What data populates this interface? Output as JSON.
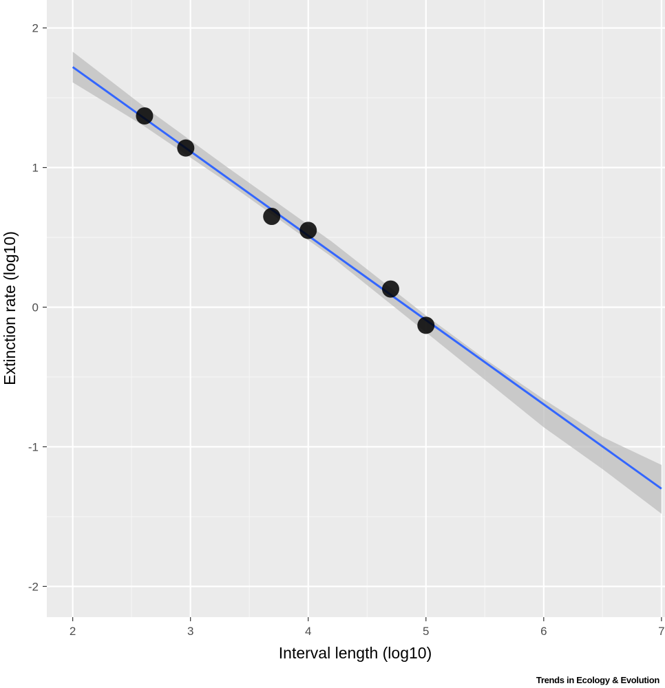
{
  "chart_data": {
    "type": "scatter",
    "xlabel": "Interval length (log10)",
    "ylabel": "Extinction rate (log10)",
    "xlim": [
      1.78,
      7.03
    ],
    "ylim": [
      -2.22,
      2.2
    ],
    "x_ticks": [
      2,
      3,
      4,
      5,
      6,
      7
    ],
    "x_tick_labels": [
      "2",
      "3",
      "4",
      "5",
      "6",
      "7"
    ],
    "y_ticks": [
      -2,
      -1,
      0,
      1,
      2
    ],
    "y_tick_labels": [
      "-2",
      "-1",
      "0",
      "1",
      "2"
    ],
    "points": [
      {
        "x": 2.61,
        "y": 1.37
      },
      {
        "x": 2.96,
        "y": 1.14
      },
      {
        "x": 3.69,
        "y": 0.65
      },
      {
        "x": 4.0,
        "y": 0.55
      },
      {
        "x": 4.7,
        "y": 0.13
      },
      {
        "x": 5.0,
        "y": -0.13
      }
    ],
    "fit_line": {
      "x": [
        2,
        7
      ],
      "y": [
        1.72,
        -1.3
      ]
    },
    "confidence_band": {
      "x": [
        2,
        2.6,
        3.3,
        4.2,
        5,
        5.5,
        6,
        6.5,
        7
      ],
      "lower": [
        1.61,
        1.3,
        0.9,
        0.36,
        -0.18,
        -0.52,
        -0.86,
        -1.16,
        -1.48
      ],
      "upper": [
        1.83,
        1.44,
        1.01,
        0.47,
        -0.06,
        -0.37,
        -0.66,
        -0.93,
        -1.13
      ]
    },
    "grid": true,
    "colors": {
      "panel": "#ebebeb",
      "grid_major": "#ffffff",
      "grid_minor": "#f5f5f5",
      "points": "#000000",
      "line": "#3366ff",
      "band": "#bdbdbd"
    }
  },
  "footer": {
    "source": "Trends in Ecology & Evolution"
  }
}
